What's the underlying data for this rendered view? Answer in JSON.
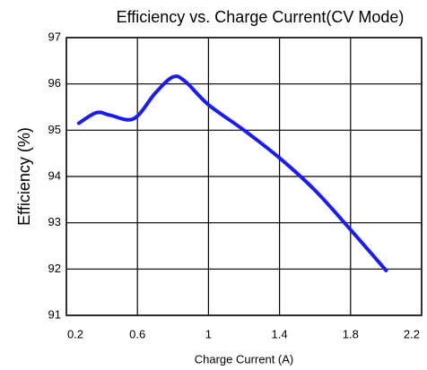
{
  "chart_data": {
    "type": "line",
    "title": "Efficiency vs. Charge Current(CV Mode)",
    "x_label": "Charge Current (A)",
    "y_label": "Efficiency (%)",
    "x": [
      0.27,
      0.37,
      0.45,
      0.58,
      0.7,
      0.8,
      0.87,
      1.0,
      1.2,
      1.4,
      1.6,
      1.8,
      2.0
    ],
    "series": [
      {
        "name": "Efficiency",
        "color": "#1a1aff",
        "values": [
          95.15,
          95.38,
          95.32,
          95.25,
          95.8,
          96.15,
          96.05,
          95.55,
          95.0,
          94.4,
          93.7,
          92.85,
          91.97
        ]
      }
    ],
    "xlim": [
      0.2,
      2.2
    ],
    "xticks": [
      0.2,
      0.6,
      1,
      1.4,
      1.8,
      2.2
    ],
    "ylim": [
      91,
      97
    ],
    "yticks": [
      91,
      92,
      93,
      94,
      95,
      96,
      97
    ],
    "grid": true
  }
}
